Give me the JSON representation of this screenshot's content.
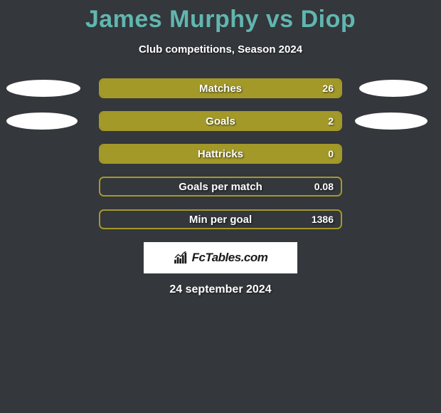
{
  "title": "James Murphy vs Diop",
  "subtitle": "Club competitions, Season 2024",
  "date": "24 september 2024",
  "logo_text": "FcTables.com",
  "colors": {
    "background": "#34373b",
    "title": "#61b6b0",
    "bar_fill": "#a39929",
    "bar_border": "#a39929",
    "ellipse": "#ffffff",
    "text": "#ffffff"
  },
  "rows": [
    {
      "label": "Matches",
      "value": "26",
      "fill_pct": 100,
      "left_ellipse_w": 104,
      "right_ellipse_w": 96
    },
    {
      "label": "Goals",
      "value": "2",
      "fill_pct": 100,
      "left_ellipse_w": 100,
      "right_ellipse_w": 102
    },
    {
      "label": "Hattricks",
      "value": "0",
      "fill_pct": 100,
      "left_ellipse_w": 0,
      "right_ellipse_w": 0
    },
    {
      "label": "Goals per match",
      "value": "0.08",
      "fill_pct": 0,
      "left_ellipse_w": 0,
      "right_ellipse_w": 0
    },
    {
      "label": "Min per goal",
      "value": "1386",
      "fill_pct": 0,
      "left_ellipse_w": 0,
      "right_ellipse_w": 0
    }
  ]
}
